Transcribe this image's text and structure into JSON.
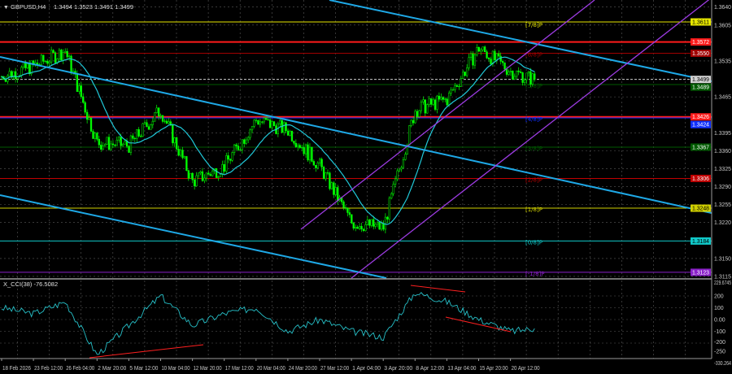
{
  "header": {
    "symbol": "GBPUSD,H4",
    "ohlc": "1.3494 1.3523 1.3491 1.3499"
  },
  "indicator": {
    "label": "X_CCI(38) -76.5082"
  },
  "colors": {
    "bull": "#00ff00",
    "bear": "#00ff00",
    "ma": "#20c8d8",
    "trend": "#1ea8e6",
    "channel": "#9b3be0",
    "cci": "#26c0c8",
    "divergence": "#ff2020",
    "grid": "#5a5a5a"
  },
  "chart_data": {
    "type": "candlestick",
    "timeframe": "H4",
    "price_axis": {
      "ticks": [
        "1.3640",
        "1.3605",
        "1.3535",
        "1.3465",
        "1.3395",
        "1.3360",
        "1.3325",
        "1.3290",
        "1.3255",
        "1.3220",
        "1.3150",
        "1.3115"
      ],
      "range": [
        1.3115,
        1.365
      ]
    },
    "time_axis": {
      "ticks": [
        "18 Feb 2026",
        "23 Feb 12:00",
        "26 Feb 04:00",
        "2 Mar 20:00",
        "5 Mar 12:00",
        "10 Mar 04:00",
        "12 Mar 20:00",
        "17 Mar 12:00",
        "20 Mar 04:00",
        "24 Mar 20:00",
        "27 Mar 12:00",
        "1 Apr 04:00",
        "3 Apr 20:00",
        "8 Apr 12:00",
        "13 Apr 04:00",
        "15 Apr 20:00",
        "20 Apr 12:00"
      ]
    },
    "approx_close_at_ticks": [
      1.3505,
      1.3525,
      1.3555,
      1.3376,
      1.337,
      1.344,
      1.33,
      1.333,
      1.342,
      1.34,
      1.333,
      1.322,
      1.321,
      1.344,
      1.346,
      1.356,
      1.3515
    ],
    "last_close": 1.3499,
    "levels": [
      {
        "price": "1.3611",
        "color": "#e6e600",
        "murrey": "[7/8]P"
      },
      {
        "price": "1.3572",
        "color": "#ff1a1a",
        "murrey": ""
      },
      {
        "price": "1.3550",
        "color": "#a00000",
        "murrey": "[6/8]P"
      },
      {
        "price": "1.3499",
        "color": "#d0d0d0",
        "murrey": ""
      },
      {
        "price": "1.3489",
        "color": "#005a00",
        "murrey": "[5/8]P"
      },
      {
        "price": "1.3426",
        "color": "#ff1a1a",
        "murrey": ""
      },
      {
        "price": "1.3424",
        "color": "#1030ff",
        "murrey": "[4/8]P"
      },
      {
        "price": "1.3367",
        "color": "#005a00",
        "murrey": "[3/8]P"
      },
      {
        "price": "1.3306",
        "color": "#c00000",
        "murrey": "[2/8]P"
      },
      {
        "price": "1.3248",
        "color": "#d0d000",
        "murrey": "[1/8]P"
      },
      {
        "price": "1.3184",
        "color": "#10c8c8",
        "murrey": "[0/8]P"
      },
      {
        "price": "1.3123",
        "color": "#8a20c8",
        "murrey": "[-1/8]P"
      }
    ],
    "cci": {
      "name": "X_CCI(38)",
      "ticks": [
        "229.6745",
        "200",
        "100",
        "0.00",
        "-100",
        "-200",
        "-250",
        "-330.264"
      ],
      "approx_at_ticks": [
        100,
        50,
        150,
        -300,
        -50,
        200,
        -50,
        50,
        100,
        -100,
        0,
        -100,
        -150,
        230,
        150,
        0,
        -100
      ],
      "last": -76.5082
    }
  }
}
